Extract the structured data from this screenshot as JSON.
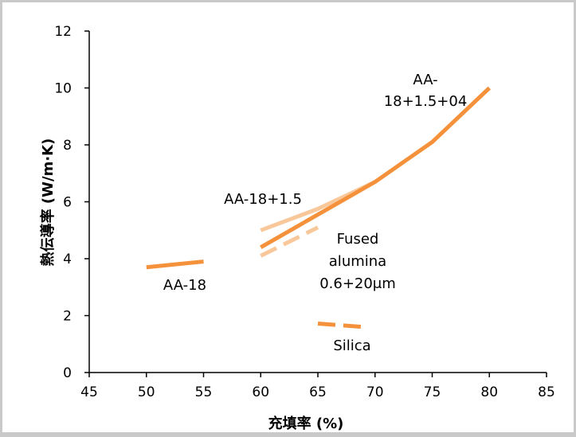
{
  "chart_data": {
    "type": "line",
    "title": "",
    "xlabel": "充填率 (%)",
    "ylabel": "熱伝導率 (W/m·K)",
    "xlim": [
      45,
      85
    ],
    "ylim": [
      0,
      12
    ],
    "xticks": [
      45,
      50,
      55,
      60,
      65,
      70,
      75,
      80,
      85
    ],
    "yticks": [
      0,
      2,
      4,
      6,
      8,
      10,
      12
    ],
    "grid": false,
    "legend": "none",
    "series": [
      {
        "name": "AA-18",
        "color": "#f4913a",
        "dash": "solid",
        "width": 5,
        "x": [
          50,
          55
        ],
        "y": [
          3.7,
          3.9
        ]
      },
      {
        "name": "AA-18+1.5",
        "color": "#f9c89a",
        "dash": "solid",
        "width": 5,
        "x": [
          60,
          65,
          70
        ],
        "y": [
          5.0,
          5.75,
          6.7
        ]
      },
      {
        "name": "AA-18+1.5+04",
        "color": "#f4913a",
        "dash": "solid",
        "width": 5,
        "x": [
          60,
          65,
          70,
          75,
          80
        ],
        "y": [
          4.4,
          5.55,
          6.7,
          8.1,
          10.0
        ]
      },
      {
        "name": "Fused alumina 0.6+20μm",
        "color": "#f9c89a",
        "dash": "dashed",
        "width": 5,
        "x": [
          60,
          65
        ],
        "y": [
          4.1,
          5.1
        ]
      },
      {
        "name": "Silica",
        "color": "#f4913a",
        "dash": "dashed",
        "width": 5,
        "x": [
          65,
          69
        ],
        "y": [
          1.72,
          1.6
        ]
      }
    ],
    "annotations": [
      {
        "text": "AA-18"
      },
      {
        "text": "AA-18+1.5"
      },
      {
        "text": "AA-"
      },
      {
        "text": "18+1.5+04"
      },
      {
        "text": "Fused"
      },
      {
        "text": "alumina"
      },
      {
        "text": "0.6+20μm"
      },
      {
        "text": "Silica"
      }
    ]
  }
}
